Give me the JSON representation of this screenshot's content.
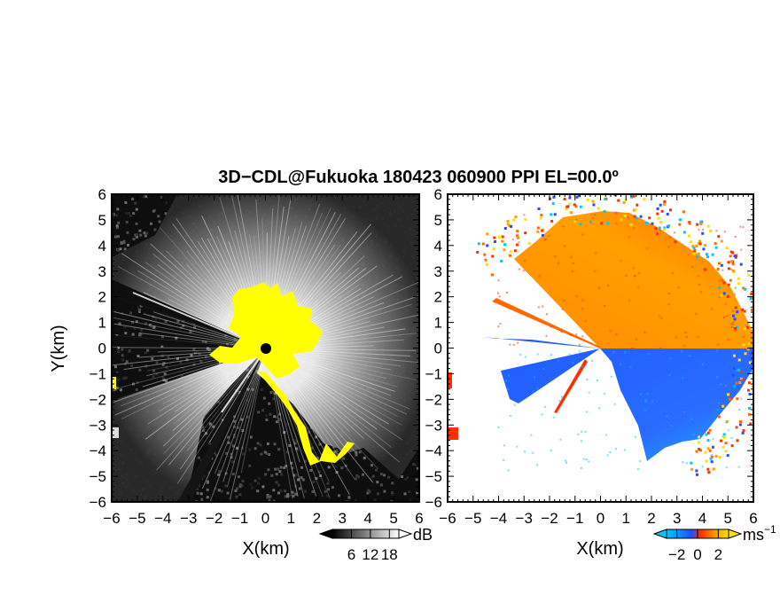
{
  "title": "3D−CDL@Fukuoka 180423 060900 PPI EL=00.0º",
  "chart_data": [
    {
      "type": "heatmap",
      "panel": "left",
      "xlabel": "X(km)",
      "ylabel": "Y(km)",
      "xlim": [
        -6,
        6
      ],
      "ylim": [
        -6,
        6
      ],
      "x_ticks": [
        "−6",
        "−5",
        "−4",
        "−3",
        "−2",
        "−1",
        "0",
        "1",
        "2",
        "3",
        "4",
        "5",
        "6"
      ],
      "y_ticks": [
        "6",
        "5",
        "4",
        "3",
        "2",
        "1",
        "0",
        "−1",
        "−2",
        "−3",
        "−4",
        "−5",
        "−6"
      ],
      "colorbar": {
        "unit": "dB",
        "ticks": [
          "6",
          "12",
          "18"
        ],
        "tick_values": [
          6,
          12,
          18
        ],
        "range": [
          0,
          21
        ],
        "colors": [
          "#000000",
          "#ffffff"
        ]
      },
      "highlight_color": "#ffff00"
    },
    {
      "type": "heatmap",
      "panel": "right",
      "xlabel": "X(km)",
      "ylabel": "",
      "xlim": [
        -6,
        6
      ],
      "ylim": [
        -6,
        6
      ],
      "x_ticks": [
        "−6",
        "−5",
        "−4",
        "−3",
        "−2",
        "−1",
        "0",
        "1",
        "2",
        "3",
        "4",
        "5",
        "6"
      ],
      "y_ticks": [
        "6",
        "5",
        "4",
        "3",
        "2",
        "1",
        "0",
        "−1",
        "−2",
        "−3",
        "−4",
        "−5",
        "−6"
      ],
      "colorbar": {
        "unit": "ms",
        "unit_exp": "−1",
        "ticks": [
          "−2",
          "0",
          "2"
        ],
        "tick_values": [
          -2,
          0,
          2
        ],
        "range": [
          -3,
          3
        ],
        "colors": [
          "#00c8ff",
          "#1e50ff",
          "#ff3000",
          "#ffa000",
          "#ffe000"
        ]
      }
    }
  ]
}
